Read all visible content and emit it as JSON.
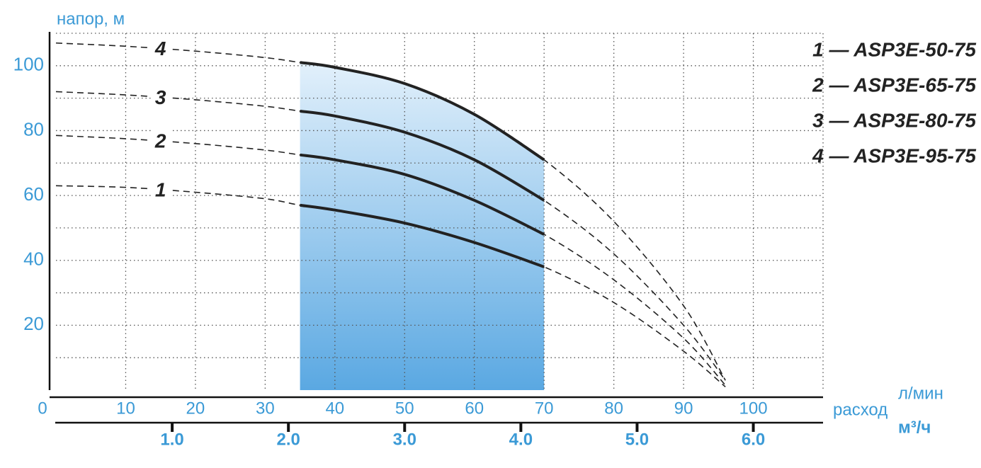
{
  "chart_data": {
    "type": "line",
    "ylabel": "напор, м",
    "xlabel": "расход",
    "xunit": "л/мин",
    "x2unit": "м³/ч",
    "xlim": [
      0,
      110
    ],
    "ylim": [
      0,
      110
    ],
    "x2lim": [
      0,
      6.6
    ],
    "xticks": [
      0,
      10,
      20,
      30,
      40,
      50,
      60,
      70,
      80,
      90,
      100
    ],
    "yticks": [
      20,
      40,
      60,
      80,
      100
    ],
    "x2ticks": [
      {
        "value": 1,
        "label": "1.0"
      },
      {
        "value": 2,
        "label": "2.0"
      },
      {
        "value": 3,
        "label": "3.0"
      },
      {
        "value": 4,
        "label": "4.0"
      },
      {
        "value": 5,
        "label": "5.0"
      },
      {
        "value": 6,
        "label": "6.0"
      }
    ],
    "xgrid": [
      10,
      20,
      30,
      40,
      50,
      60,
      70,
      80,
      90,
      100,
      110
    ],
    "ygrid": [
      10,
      20,
      30,
      40,
      50,
      60,
      70,
      80,
      90,
      100,
      110
    ],
    "grid": true,
    "highlight_xrange": [
      35,
      70
    ],
    "x": [
      0,
      10,
      20,
      30,
      35,
      40,
      50,
      60,
      70,
      80,
      90,
      96
    ],
    "series": [
      {
        "name": "1",
        "color": "#222222",
        "values": [
          63,
          62.5,
          61,
          59,
          57,
          55.5,
          51.5,
          45.5,
          38,
          27,
          12,
          1
        ]
      },
      {
        "name": "2",
        "color": "#222222",
        "values": [
          78.5,
          77.5,
          76,
          74,
          72.5,
          71,
          66.5,
          58.5,
          48,
          34,
          16,
          1.5
        ]
      },
      {
        "name": "3",
        "color": "#222222",
        "values": [
          92,
          91,
          89.5,
          87.5,
          86,
          84.5,
          79.5,
          71,
          58.5,
          42,
          20,
          3
        ]
      },
      {
        "name": "4",
        "color": "#222222",
        "values": [
          107,
          106,
          104.5,
          102.5,
          101,
          99.5,
          94.5,
          85,
          71,
          52,
          26,
          3
        ]
      }
    ],
    "legend": [
      "1 — ASP3E-50-75",
      "2 — ASP3E-65-75",
      "3 — ASP3E-80-75",
      "4 — ASP3E-95-75"
    ]
  }
}
